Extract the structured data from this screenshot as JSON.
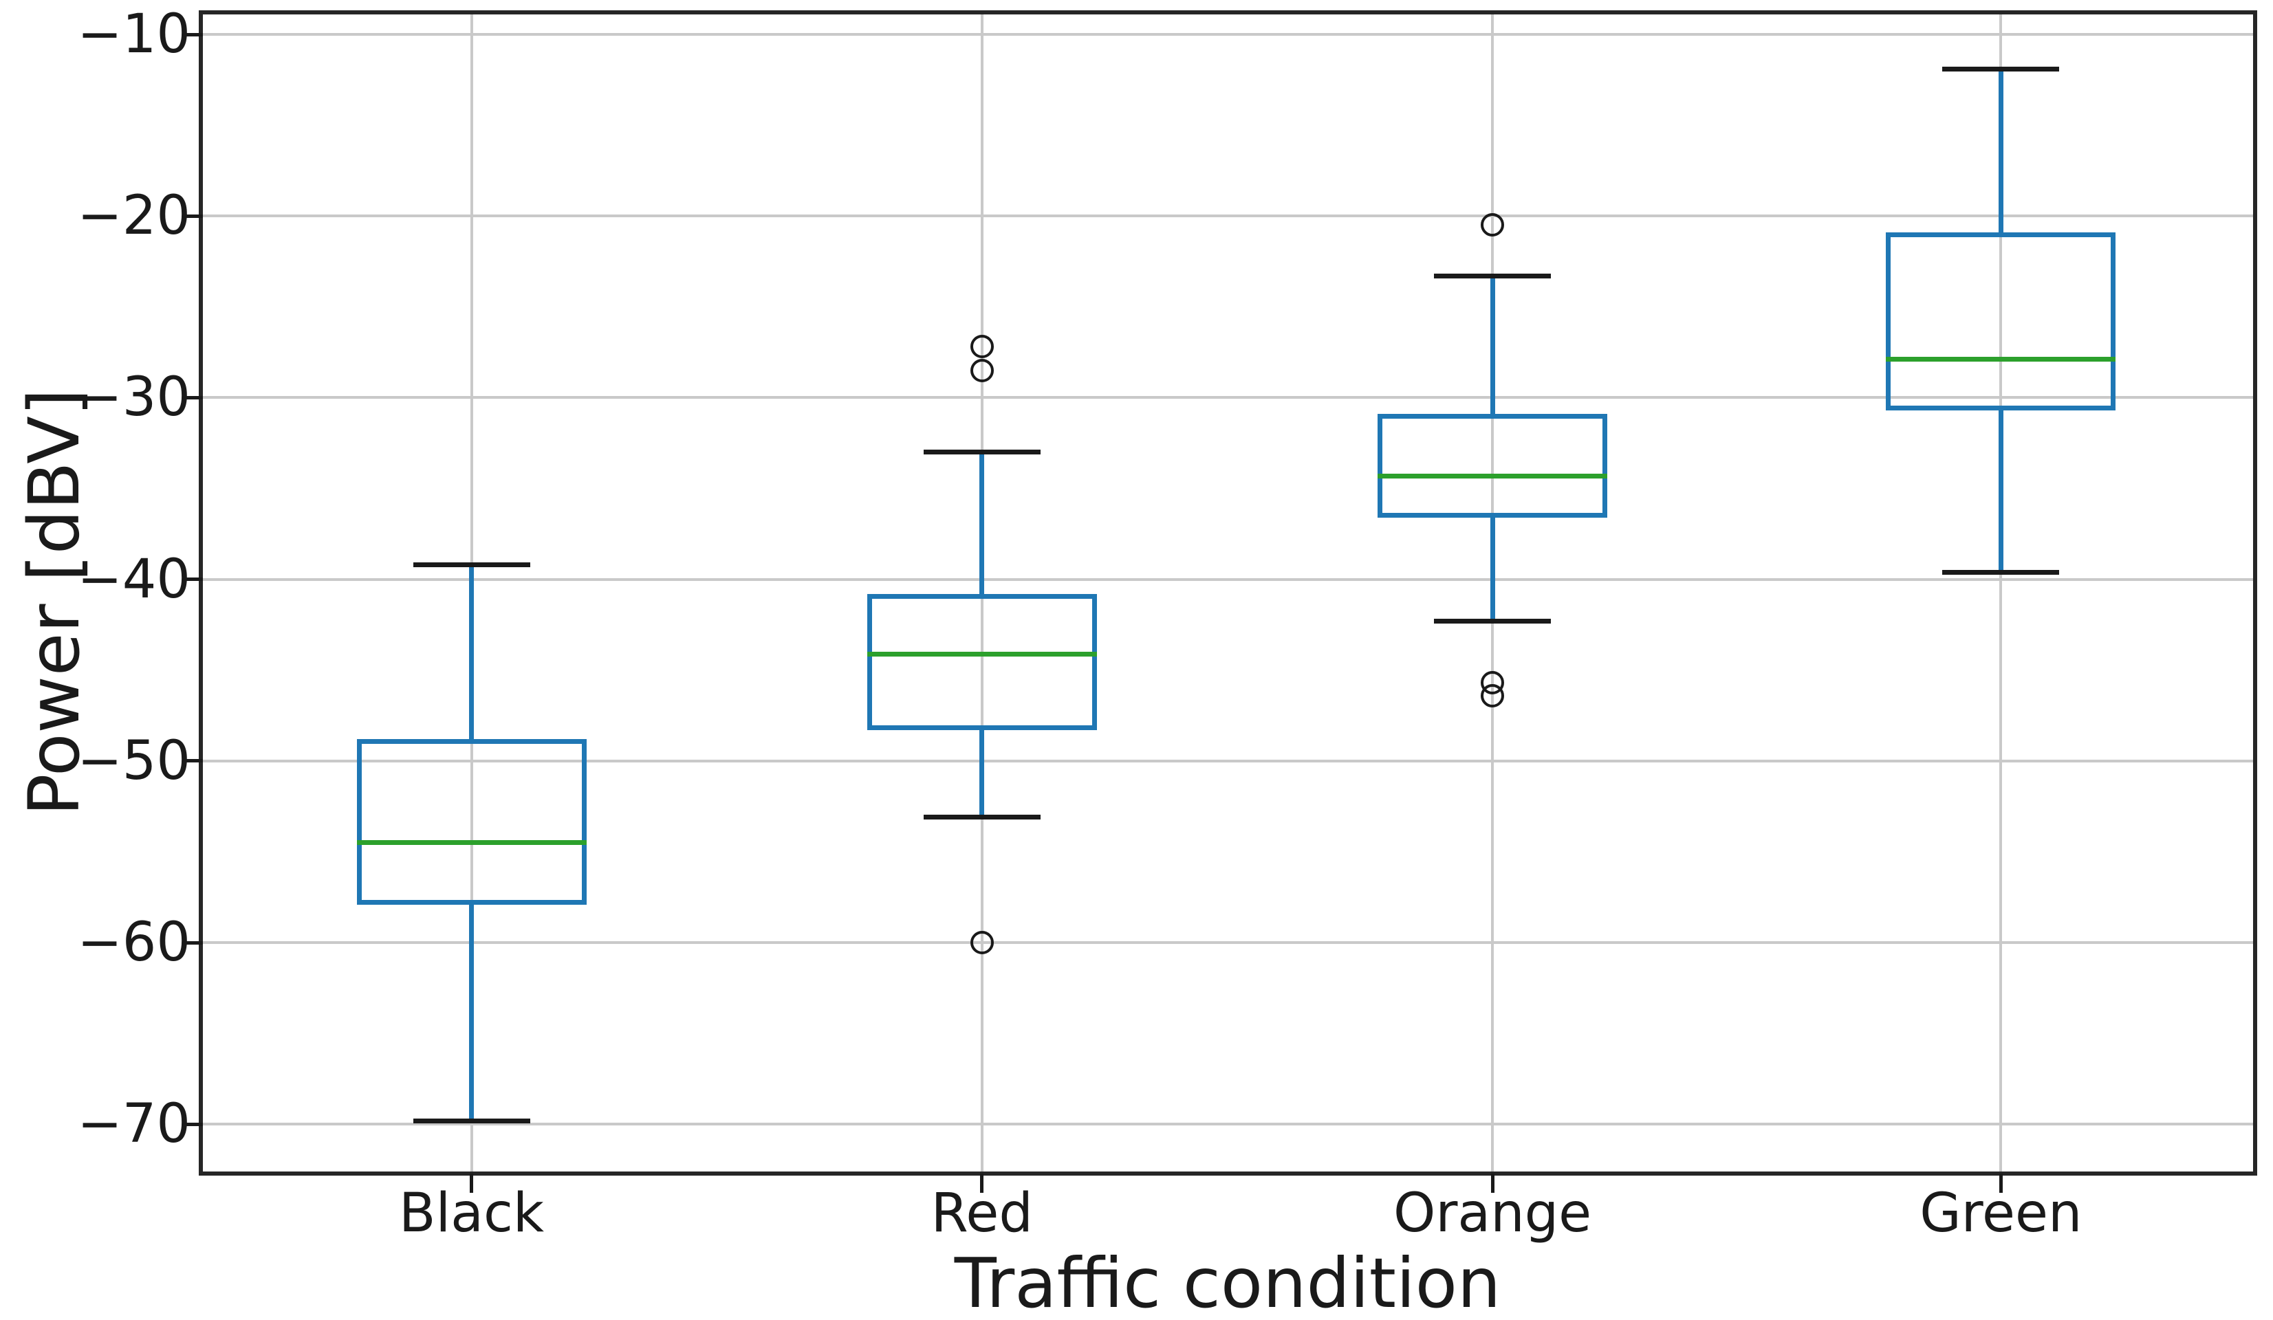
{
  "chart_data": {
    "type": "boxplot",
    "title": "",
    "xlabel": "Traffic condition",
    "ylabel": "Power [dBV]",
    "categories": [
      "Black",
      "Red",
      "Orange",
      "Green"
    ],
    "y_ticks": [
      -70,
      -60,
      -50,
      -40,
      -30,
      -20,
      -10
    ],
    "y_tick_labels": [
      "−70",
      "−60",
      "−50",
      "−40",
      "−30",
      "−20",
      "−10"
    ],
    "ylim": [
      -72.6,
      -8.9
    ],
    "grid": "both",
    "legend": "none",
    "series": [
      {
        "label": "Black",
        "whislo": -69.8,
        "q1": -57.9,
        "med": -54.5,
        "q3": -48.8,
        "whishi": -39.2,
        "fliers": []
      },
      {
        "label": "Red",
        "whislo": -53.1,
        "q1": -48.3,
        "med": -44.1,
        "q3": -40.8,
        "whishi": -33.0,
        "fliers": [
          -27.2,
          -28.5,
          -60.0
        ]
      },
      {
        "label": "Orange",
        "whislo": -42.3,
        "q1": -36.6,
        "med": -34.3,
        "q3": -30.9,
        "whishi": -23.3,
        "fliers": [
          -20.5,
          -45.7,
          -46.4
        ]
      },
      {
        "label": "Green",
        "whislo": -39.6,
        "q1": -30.7,
        "med": -27.9,
        "q3": -20.9,
        "whishi": -11.9,
        "fliers": []
      }
    ],
    "colors": {
      "box": "#1f77b4",
      "whisker": "#1f77b4",
      "median": "#2ca02c",
      "cap": "#1a1a1a",
      "flier": "#1a1a1a",
      "grid": "#c9c9c9",
      "spine": "#262626",
      "text": "#1a1a1a",
      "background": "#ffffff"
    }
  }
}
